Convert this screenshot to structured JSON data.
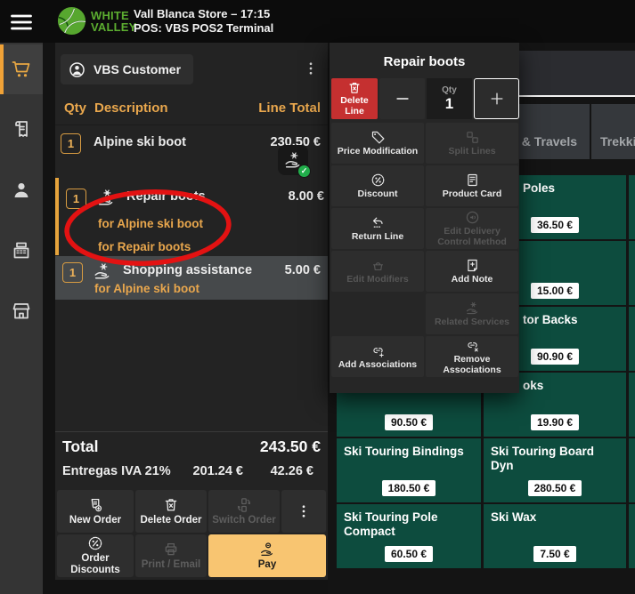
{
  "header": {
    "brand_top": "WHITE",
    "brand_bottom": "VALLEY",
    "store_line": "Vall Blanca Store – 17:15",
    "pos_line": "POS: VBS POS2 Terminal"
  },
  "sidebar": {
    "items": [
      {
        "name": "orders",
        "icon": "cart",
        "active": true
      },
      {
        "name": "receipts",
        "icon": "receipt",
        "active": false
      },
      {
        "name": "customers",
        "icon": "person",
        "active": false
      },
      {
        "name": "register",
        "icon": "register",
        "active": false
      },
      {
        "name": "store",
        "icon": "store",
        "active": false
      }
    ]
  },
  "order": {
    "customer": "VBS Customer",
    "columns": {
      "qty": "Qty",
      "description": "Description",
      "line_total": "Line Total"
    },
    "lines": [
      {
        "qty": "1",
        "name": "Alpine ski boot",
        "total": "230.50 €"
      },
      {
        "qty": "1",
        "name": "Repair boots",
        "total": "8.00 €",
        "sublines": [
          "for Alpine ski boot",
          "for Repair boots"
        ]
      },
      {
        "qty": "1",
        "name": "Shopping assistance",
        "total": "5.00 €",
        "sublines": [
          "for Alpine ski boot"
        ]
      }
    ],
    "total_label": "Total",
    "total_value": "243.50 €",
    "tax_label": "Entregas IVA 21%",
    "tax_base": "201.24 €",
    "tax_amount": "42.26 €"
  },
  "footer": {
    "rows": [
      [
        {
          "label": "New Order",
          "icon": "new-order",
          "enabled": true
        },
        {
          "label": "Delete Order",
          "icon": "trash-x",
          "enabled": true
        },
        {
          "label": "Switch Order",
          "icon": "switch",
          "enabled": false
        },
        {
          "label": "",
          "icon": "kebab",
          "enabled": true,
          "kebab": true
        }
      ],
      [
        {
          "label": "Order Discounts",
          "icon": "discount",
          "enabled": true
        },
        {
          "label": "Print / Email",
          "icon": "printer",
          "enabled": false
        },
        {
          "label": "Pay",
          "icon": "pay",
          "enabled": true,
          "primary": true
        }
      ]
    ]
  },
  "popup": {
    "title": "Repair boots",
    "delete_label": "Delete Line",
    "qty_label": "Qty",
    "qty_value": "1",
    "actions": [
      {
        "label": "Price Modification",
        "icon": "tag",
        "enabled": true
      },
      {
        "label": "Split Lines",
        "icon": "split",
        "enabled": false
      },
      {
        "label": "Discount",
        "icon": "discount",
        "enabled": true
      },
      {
        "label": "Product Card",
        "icon": "card",
        "enabled": true
      },
      {
        "label": "Return Line",
        "icon": "return",
        "enabled": true
      },
      {
        "label": "Edit Delivery Control Method",
        "icon": "delivery",
        "enabled": false
      },
      {
        "label": "Edit Modifiers",
        "icon": "basket",
        "enabled": false
      },
      {
        "label": "Add Note",
        "icon": "note",
        "enabled": true
      },
      {
        "label": "",
        "icon": "",
        "enabled": false,
        "empty": true
      },
      {
        "label": "Related Services",
        "icon": "hand-gear",
        "enabled": false
      },
      {
        "label": "Add Associations",
        "icon": "link-plus",
        "enabled": true
      },
      {
        "label": "Remove Associations",
        "icon": "link-x",
        "enabled": true
      }
    ]
  },
  "tabs": [
    {
      "label": "s & Travels"
    },
    {
      "label": "Trekking a"
    }
  ],
  "grid": {
    "tiles": [
      [
        {
          "name": "",
          "price": ""
        },
        {
          "name": "Poles",
          "price": "36.50 €",
          "indent": 36
        },
        {
          "name": "A",
          "price": ""
        }
      ],
      [
        {
          "name": "",
          "price": ""
        },
        {
          "name": "",
          "price": "15.00 €"
        },
        {
          "name": "P",
          "price": ""
        }
      ],
      [
        {
          "name": "",
          "price": ""
        },
        {
          "name": "tor Backs",
          "price": "90.90 €",
          "indent": 36
        },
        {
          "name": "P",
          "price": ""
        }
      ],
      [
        {
          "name": "",
          "price": "90.50 €"
        },
        {
          "name": "oks",
          "price": "19.90 €",
          "indent": 36
        },
        {
          "name": "S",
          "price": ""
        }
      ],
      [
        {
          "name": "Ski Touring Bindings",
          "price": "180.50 €"
        },
        {
          "name": "Ski Touring Board Dyn",
          "price": "280.50 €"
        },
        {
          "name": "S",
          "price": ""
        }
      ],
      [
        {
          "name": "Ski Touring Pole Compact",
          "price": "60.50 €"
        },
        {
          "name": "Ski Wax",
          "price": "7.50 €"
        },
        {
          "name": "S",
          "price": ""
        }
      ]
    ]
  },
  "annotation": {
    "type": "ellipse",
    "color": "#e31212"
  },
  "colors": {
    "accent_amber": "#e9a74d",
    "pay_button": "#f8c571",
    "delete_red": "#c53030",
    "tile_teal": "#0d4c3e",
    "logo_green": "#5cae30",
    "check_green": "#22b04c"
  }
}
